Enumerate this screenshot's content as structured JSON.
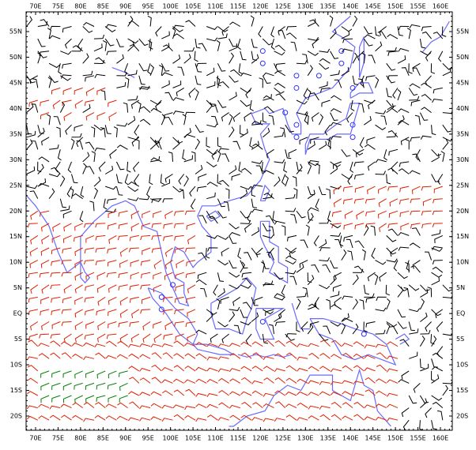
{
  "map": {
    "x_labels": [
      "70E",
      "75E",
      "80E",
      "85E",
      "90E",
      "95E",
      "100E",
      "105E",
      "110E",
      "115E",
      "120E",
      "125E",
      "130E",
      "135E",
      "140E",
      "145E",
      "150E",
      "155E",
      "160E"
    ],
    "y_labels": [
      "55N",
      "50N",
      "45N",
      "40N",
      "35N",
      "30N",
      "25N",
      "20N",
      "15N",
      "10N",
      "5N",
      "EQ",
      "5S",
      "10S",
      "15S",
      "20S"
    ]
  }
}
